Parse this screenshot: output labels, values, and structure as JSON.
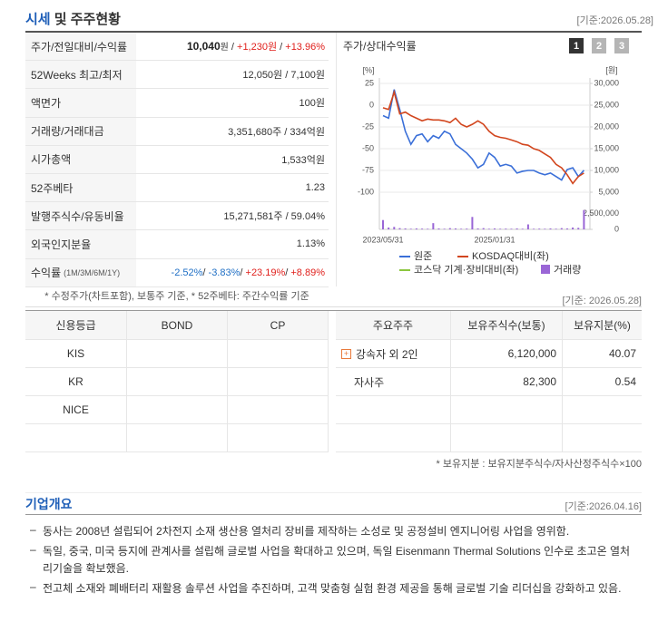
{
  "header": {
    "title_accent": "시세",
    "title": "및 주주현황",
    "date": "[기준:2026.05.28]"
  },
  "quote_table": {
    "rows": [
      {
        "label": "주가/전일대비/수익률",
        "value": [
          {
            "text": "10,040",
            "style": "strong"
          },
          {
            "text": "원",
            "style": "unit"
          },
          {
            "text": " / "
          },
          {
            "text": "+1,230원",
            "style": "up"
          },
          {
            "text": " / "
          },
          {
            "text": "+13.96%",
            "style": "up"
          }
        ]
      },
      {
        "label": "52Weeks 최고/최저",
        "value": [
          {
            "text": "12,050원 / 7,100원"
          }
        ]
      },
      {
        "label": "액면가",
        "value": [
          {
            "text": "100원"
          }
        ]
      },
      {
        "label": "거래량/거래대금",
        "value": [
          {
            "text": "3,351,680주 / 334억원"
          }
        ]
      },
      {
        "label": "시가총액",
        "value": [
          {
            "text": "1,533억원"
          }
        ]
      },
      {
        "label": "52주베타",
        "value": [
          {
            "text": "1.23"
          }
        ]
      },
      {
        "label": "발행주식수/유동비율",
        "value": [
          {
            "text": "15,271,581주 / 59.04%"
          }
        ]
      },
      {
        "label": "외국인지분율",
        "value": [
          {
            "text": "1.13%"
          }
        ]
      },
      {
        "label": "수익률",
        "label_note": "(1M/3M/6M/1Y)",
        "value": [
          {
            "text": "-2.52%",
            "style": "down"
          },
          {
            "text": "/ "
          },
          {
            "text": "-3.83%",
            "style": "down"
          },
          {
            "text": "/ "
          },
          {
            "text": "+23.19%",
            "style": "up"
          },
          {
            "text": "/ "
          },
          {
            "text": "+8.89%",
            "style": "up"
          }
        ]
      }
    ],
    "note": "* 수정주가(차트포함), 보통주 기준, * 52주베타: 주간수익률 기준"
  },
  "price_chart": {
    "type": "line",
    "title": "주가/상대수익률",
    "tabs": [
      "1",
      "2",
      "3"
    ],
    "y_unit": "[%]",
    "y2_unit": "[원]",
    "categories": [
      "2023/05/31",
      null,
      null,
      null,
      null,
      null,
      null,
      null,
      null,
      null,
      null,
      null,
      null,
      null,
      null,
      null,
      null,
      null,
      null,
      null,
      "2025/01/31",
      null,
      null,
      null,
      null,
      null,
      null,
      null,
      null,
      null,
      null,
      null,
      null,
      null,
      null,
      null,
      null
    ],
    "ylim": [
      -106.25,
      31.25
    ],
    "yticks": [
      25,
      0,
      -25,
      -50,
      -75,
      -100
    ],
    "y2lim": [
      3750,
      31250
    ],
    "y2ticks": [
      {
        "value": 30000,
        "label": "30,000"
      },
      {
        "value": 25000,
        "label": "25,000"
      },
      {
        "value": 20000,
        "label": "20,000"
      },
      {
        "value": 15000,
        "label": "15,000"
      },
      {
        "value": 10000,
        "label": "10,000"
      },
      {
        "value": 5000,
        "label": "5,000"
      }
    ],
    "grid": true,
    "series": [
      {
        "name": "원준",
        "color": "#3a6fd8",
        "axis": "y2",
        "values": [
          22600,
          22000,
          28600,
          24000,
          19000,
          16000,
          18000,
          18400,
          16600,
          18000,
          17400,
          19000,
          18400,
          16000,
          15000,
          14000,
          12600,
          10600,
          11400,
          14000,
          13000,
          11000,
          11400,
          11000,
          9400,
          9800,
          10000,
          10000,
          9400,
          9000,
          9400,
          8600,
          7800,
          10200,
          10600,
          8600,
          10040
        ]
      },
      {
        "name": "KOSDAQ대비(좌)",
        "color": "#d2461e",
        "values": [
          -3,
          -5,
          15,
          -10,
          -8,
          -12,
          -15,
          -18,
          -16,
          -17,
          -17,
          -18,
          -20,
          -15,
          -22,
          -25,
          -22,
          -18,
          -22,
          -30,
          -35,
          -37,
          -38,
          -40,
          -42,
          -45,
          -46,
          -50,
          -52,
          -56,
          -60,
          -68,
          -72,
          -80,
          -90,
          -82,
          -78
        ]
      },
      {
        "name": "코스닥 기계·장비대비(좌)",
        "color": "#8cc63f",
        "values": [
          null,
          null,
          null,
          null,
          null,
          null,
          null,
          null,
          null,
          null,
          null,
          null,
          null,
          null,
          null,
          null,
          null,
          null,
          null,
          null,
          null,
          null,
          null,
          null,
          null,
          null,
          null,
          null,
          null,
          null,
          null,
          null,
          null,
          null,
          null,
          null,
          null
        ]
      }
    ],
    "volume": {
      "name": "거래량",
      "color": "#9a66d6",
      "vlim": [
        0,
        3500000
      ],
      "vticks": [
        {
          "value": 2500000,
          "label": "2,500,000"
        },
        0
      ],
      "values": [
        1500000,
        300000,
        400000,
        200000,
        150000,
        100000,
        150000,
        120000,
        100000,
        1000000,
        150000,
        100000,
        200000,
        150000,
        100000,
        120000,
        2000000,
        150000,
        200000,
        100000,
        150000,
        100000,
        120000,
        100000,
        150000,
        100000,
        800000,
        100000,
        120000,
        100000,
        150000,
        100000,
        200000,
        150000,
        300000,
        250000,
        3100000
      ]
    }
  },
  "holders_date": "[기준: 2026.05.28]",
  "credit_table": {
    "headers": [
      "신용등급",
      "BOND",
      "CP"
    ],
    "rows": [
      "KIS",
      "KR",
      "NICE"
    ]
  },
  "holder_table": {
    "headers": [
      "주요주주",
      "보유주식수(보통)",
      "보유지분(%)"
    ],
    "rows": [
      {
        "name": "강속자 외 2인",
        "shares": "6,120,000",
        "ratio": "40.07",
        "expandable": true
      },
      {
        "name": "자사주",
        "shares": "82,300",
        "ratio": "0.54",
        "expandable": false
      }
    ],
    "note": "* 보유지분 : 보유지분주식수/자사산정주식수×100"
  },
  "overview": {
    "title": "기업개요",
    "date": "[기준:2026.04.16]",
    "items": [
      "동사는 2008년 설립되어 2차전지 소재 생산용 열처리 장비를 제작하는 소성로 및 공정설비 엔지니어링 사업을 영위함.",
      "독일, 중국, 미국 등지에 관계사를 설립해 글로벌 사업을 확대하고 있으며, 독일 Eisenmann Thermal Solutions 인수로 초고온 열처리기술을 확보했음.",
      "전고체 소재와 폐배터리 재활용 솔루션 사업을 추진하며, 고객 맞춤형 실험 환경 제공을 통해 글로벌 기술 리더십을 강화하고 있음."
    ]
  }
}
